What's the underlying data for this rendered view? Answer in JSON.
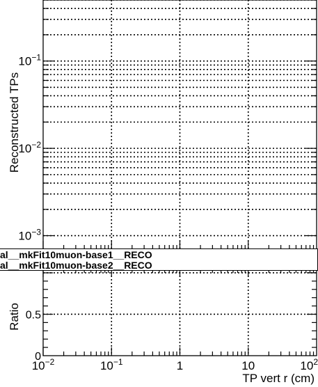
{
  "chart_data": [
    {
      "type": "line",
      "panel": "upper",
      "ylabel": "Reconstructed TPs",
      "yscale": "log",
      "ylim": [
        0.0007,
        0.5
      ],
      "xscale": "log",
      "xlim": [
        0.01,
        100
      ],
      "y_tick_labels": [
        "10^-1",
        "10^-2",
        "10^-3"
      ],
      "grid": true,
      "series": []
    },
    {
      "type": "line",
      "panel": "ratio",
      "ylabel": "Ratio",
      "xlabel": "TP vert r (cm)",
      "xscale": "log",
      "xlim": [
        0.01,
        100
      ],
      "ylim": [
        0,
        1.05
      ],
      "x_tick_labels": [
        "10^-2",
        "10^-1",
        "1",
        "10",
        "10^2"
      ],
      "y_tick_labels": [
        "0",
        "0.5"
      ],
      "grid": true,
      "series": []
    }
  ],
  "legend": {
    "entries": [
      "al__mkFit10muon-base1__RECO",
      "al__mkFit10muon-base2__RECO"
    ]
  }
}
